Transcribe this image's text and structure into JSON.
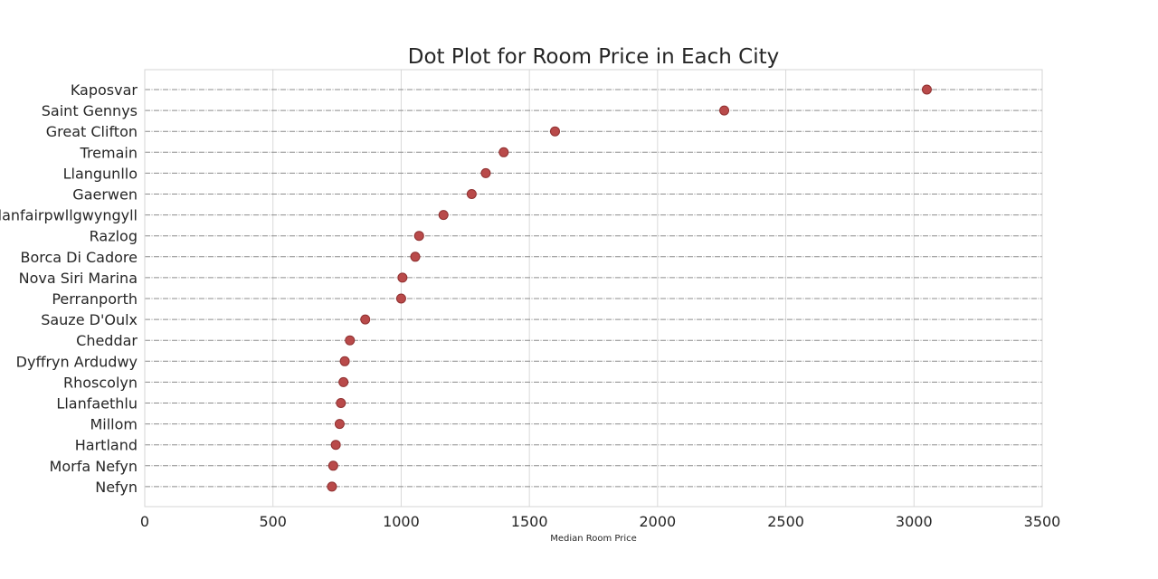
{
  "chart_data": {
    "type": "scatter",
    "title": "Dot Plot for Room Price in Each City",
    "xlabel": "Median Room Price",
    "ylabel": "",
    "xlim": [
      0,
      3500
    ],
    "xticks": [
      0,
      500,
      1000,
      1500,
      2000,
      2500,
      3000,
      3500
    ],
    "xtick_labels": [
      "0",
      "500",
      "1000",
      "1500",
      "2000",
      "2500",
      "3000",
      "3500"
    ],
    "grid": true,
    "legend": "none",
    "marker_color": "#b94a4a",
    "categories": [
      "Kaposvar",
      "Saint Gennys",
      "Great Clifton",
      "Tremain",
      "Llangunllo",
      "Gaerwen",
      "Llanfairpwllgwyngyll",
      "Razlog",
      "Borca Di Cadore",
      "Nova Siri Marina",
      "Perranporth",
      "Sauze D'Oulx",
      "Cheddar",
      "Dyffryn Ardudwy",
      "Rhoscolyn",
      "Llanfaethlu",
      "Millom",
      "Hartland",
      "Morfa Nefyn",
      "Nefyn"
    ],
    "values": [
      3050,
      2260,
      1600,
      1400,
      1330,
      1275,
      1165,
      1070,
      1055,
      1005,
      1000,
      860,
      800,
      780,
      775,
      765,
      760,
      745,
      735,
      730
    ]
  }
}
